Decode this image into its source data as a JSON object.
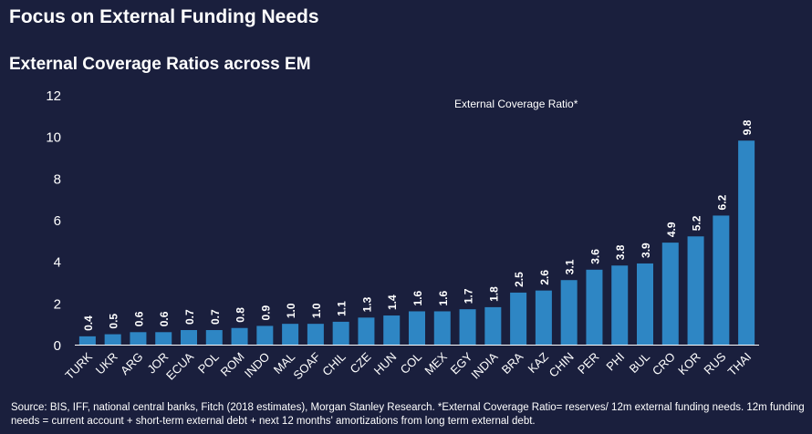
{
  "header": {
    "title": "Focus on External Funding Needs",
    "subtitle": "External Coverage Ratios across EM"
  },
  "footer": {
    "source": "Source: BIS, IFF, national central banks, Fitch (2018 estimates), Morgan Stanley Research. *External Coverage Ratio= reserves/ 12m external funding needs. 12m funding needs = current account + short-term external debt + next 12 months' amortizations from long term external debt."
  },
  "chart_data": {
    "type": "bar",
    "title": "External Coverage Ratios across EM",
    "legend": "External Coverage Ratio*",
    "categories": [
      "TURK",
      "UKR",
      "ARG",
      "JOR",
      "ECUA",
      "POL",
      "ROM",
      "INDO",
      "MAL",
      "SOAF",
      "CHIL",
      "CZE",
      "HUN",
      "COL",
      "MEX",
      "EGY",
      "INDIA",
      "BRA",
      "KAZ",
      "CHIN",
      "PER",
      "PHI",
      "BUL",
      "CRO",
      "KOR",
      "RUS",
      "THAI"
    ],
    "values": [
      0.4,
      0.5,
      0.6,
      0.6,
      0.7,
      0.7,
      0.8,
      0.9,
      1.0,
      1.0,
      1.1,
      1.3,
      1.4,
      1.6,
      1.6,
      1.7,
      1.8,
      2.5,
      2.6,
      3.1,
      3.6,
      3.8,
      3.9,
      4.9,
      5.2,
      6.2,
      9.8
    ],
    "value_labels": [
      "0.4",
      "0.5",
      "0.6",
      "0.6",
      "0.7",
      "0.7",
      "0.8",
      "0.9",
      "1.0",
      "1.0",
      "1.1",
      "1.3",
      "1.4",
      "1.6",
      "1.6",
      "1.7",
      "1.8",
      "2.5",
      "2.6",
      "3.1",
      "3.6",
      "3.8",
      "3.9",
      "4.9",
      "5.2",
      "6.2",
      "9.8"
    ],
    "ylim": [
      0,
      12
    ],
    "yticks": [
      "0",
      "2",
      "4",
      "6",
      "8",
      "10",
      "12"
    ],
    "colors": {
      "bar": "#2e86c4",
      "text": "#ffffff",
      "axis": "#ffffff"
    }
  }
}
